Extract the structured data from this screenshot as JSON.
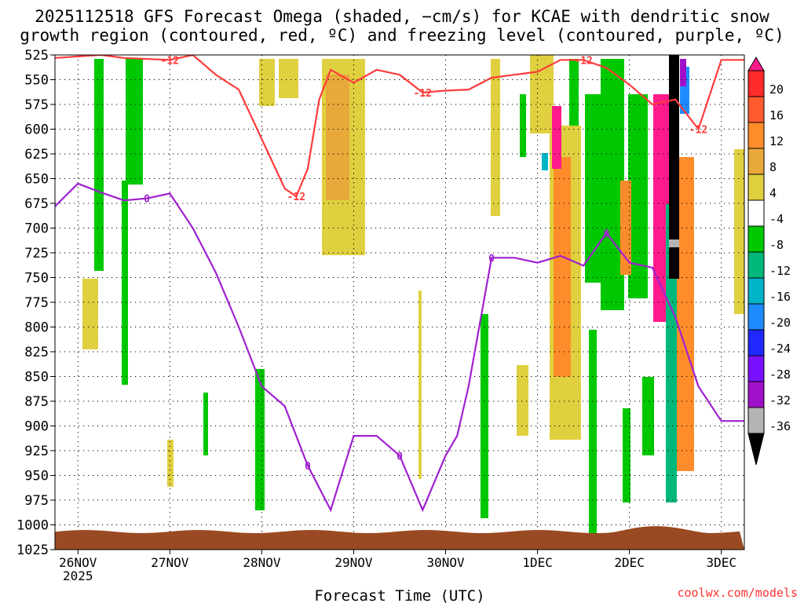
{
  "chart_data": {
    "type": "heatmap",
    "title_lines": [
      "2025112518 GFS Forecast Omega (shaded, −cm/s) for KCAE with dendritic snow",
      "growth region (contoured, red, ºC) and freezing level (contoured, purple, ºC)"
    ],
    "xlabel": "Forecast Time (UTC)",
    "credit": "coolwx.com/models",
    "y_axis": {
      "ticks": [
        525,
        550,
        575,
        600,
        625,
        650,
        675,
        700,
        725,
        750,
        775,
        800,
        825,
        850,
        875,
        900,
        925,
        950,
        975,
        1000,
        1025
      ],
      "ylim": [
        525,
        1025
      ]
    },
    "x_axis": {
      "start": "2025-11-25 18Z",
      "end": "2025-12-03 06Z",
      "ticks": [
        {
          "time": "2025-11-26 00Z",
          "label": "26NOV",
          "sub": "2025"
        },
        {
          "time": "2025-11-27 00Z",
          "label": "27NOV"
        },
        {
          "time": "2025-11-28 00Z",
          "label": "28NOV"
        },
        {
          "time": "2025-11-29 00Z",
          "label": "29NOV"
        },
        {
          "time": "2025-11-30 00Z",
          "label": "30NOV"
        },
        {
          "time": "2025-12-01 00Z",
          "label": "1DEC"
        },
        {
          "time": "2025-12-02 00Z",
          "label": "2DEC"
        },
        {
          "time": "2025-12-03 00Z",
          "label": "3DEC"
        }
      ]
    },
    "grid": true,
    "colorbar": {
      "labels": [
        20,
        16,
        12,
        8,
        4,
        -4,
        -8,
        -12,
        -16,
        -20,
        -24,
        -28,
        -32,
        -36
      ],
      "colors": [
        "#ff1a8c",
        "#ff2a2a",
        "#ff5a30",
        "#ff8c2a",
        "#e8a83a",
        "#e0d040",
        "#ffffff",
        "#00c800",
        "#00b87a",
        "#00b4c8",
        "#1e8cff",
        "#1e28ff",
        "#7a10ff",
        "#a010c8",
        "#b4b4b4",
        "#000000"
      ]
    },
    "series": [
      {
        "kind": "contour",
        "label": "-12",
        "color": "#ff3b3b",
        "points": [
          [
            "2025-11-25 18Z",
            528
          ],
          [
            "2025-11-26 06Z",
            525
          ],
          [
            "2025-11-26 12Z",
            528
          ],
          [
            "2025-11-27 00Z",
            530
          ],
          [
            "2025-11-27 06Z",
            525
          ],
          [
            "2025-11-27 12Z",
            545
          ],
          [
            "2025-11-27 18Z",
            560
          ],
          [
            "2025-11-28 00Z",
            610
          ],
          [
            "2025-11-28 06Z",
            660
          ],
          [
            "2025-11-28 09Z",
            668
          ],
          [
            "2025-11-28 12Z",
            640
          ],
          [
            "2025-11-28 15Z",
            570
          ],
          [
            "2025-11-28 18Z",
            540
          ],
          [
            "2025-11-29 00Z",
            553
          ],
          [
            "2025-11-29 06Z",
            540
          ],
          [
            "2025-11-29 12Z",
            545
          ],
          [
            "2025-11-29 18Z",
            563
          ],
          [
            "2025-11-30 00Z",
            561
          ],
          [
            "2025-11-30 06Z",
            560
          ],
          [
            "2025-11-30 12Z",
            548
          ],
          [
            "2025-11-30 18Z",
            545
          ],
          [
            "2025-12-01 00Z",
            542
          ],
          [
            "2025-12-01 06Z",
            530
          ],
          [
            "2025-12-01 12Z",
            530
          ],
          [
            "2025-12-01 18Z",
            538
          ],
          [
            "2025-12-02 00Z",
            555
          ],
          [
            "2025-12-02 06Z",
            575
          ],
          [
            "2025-12-02 12Z",
            570
          ],
          [
            "2025-12-02 18Z",
            600
          ],
          [
            "2025-12-03 00Z",
            530
          ],
          [
            "2025-12-03 06Z",
            530
          ]
        ]
      },
      {
        "kind": "contour",
        "label": "0",
        "color": "#a020d0",
        "points": [
          [
            "2025-11-25 18Z",
            678
          ],
          [
            "2025-11-26 00Z",
            655
          ],
          [
            "2025-11-26 06Z",
            664
          ],
          [
            "2025-11-26 12Z",
            672
          ],
          [
            "2025-11-26 18Z",
            670
          ],
          [
            "2025-11-27 00Z",
            665
          ],
          [
            "2025-11-27 06Z",
            700
          ],
          [
            "2025-11-27 12Z",
            745
          ],
          [
            "2025-11-27 18Z",
            800
          ],
          [
            "2025-11-28 00Z",
            860
          ],
          [
            "2025-11-28 06Z",
            880
          ],
          [
            "2025-11-28 12Z",
            940
          ],
          [
            "2025-11-28 18Z",
            985
          ],
          [
            "2025-11-29 00Z",
            910
          ],
          [
            "2025-11-29 06Z",
            910
          ],
          [
            "2025-11-29 12Z",
            930
          ],
          [
            "2025-11-29 18Z",
            985
          ],
          [
            "2025-11-30 00Z",
            930
          ],
          [
            "2025-11-30 03Z",
            910
          ],
          [
            "2025-11-30 06Z",
            860
          ],
          [
            "2025-11-30 12Z",
            730
          ],
          [
            "2025-11-30 18Z",
            730
          ],
          [
            "2025-12-01 00Z",
            735
          ],
          [
            "2025-12-01 06Z",
            728
          ],
          [
            "2025-12-01 12Z",
            738
          ],
          [
            "2025-12-01 18Z",
            705
          ],
          [
            "2025-12-02 00Z",
            735
          ],
          [
            "2025-12-02 06Z",
            740
          ],
          [
            "2025-12-02 12Z",
            790
          ],
          [
            "2025-12-02 18Z",
            860
          ],
          [
            "2025-12-03 00Z",
            895
          ],
          [
            "2025-12-03 06Z",
            895
          ]
        ]
      }
    ],
    "terrain_color": "#9a4a22"
  }
}
